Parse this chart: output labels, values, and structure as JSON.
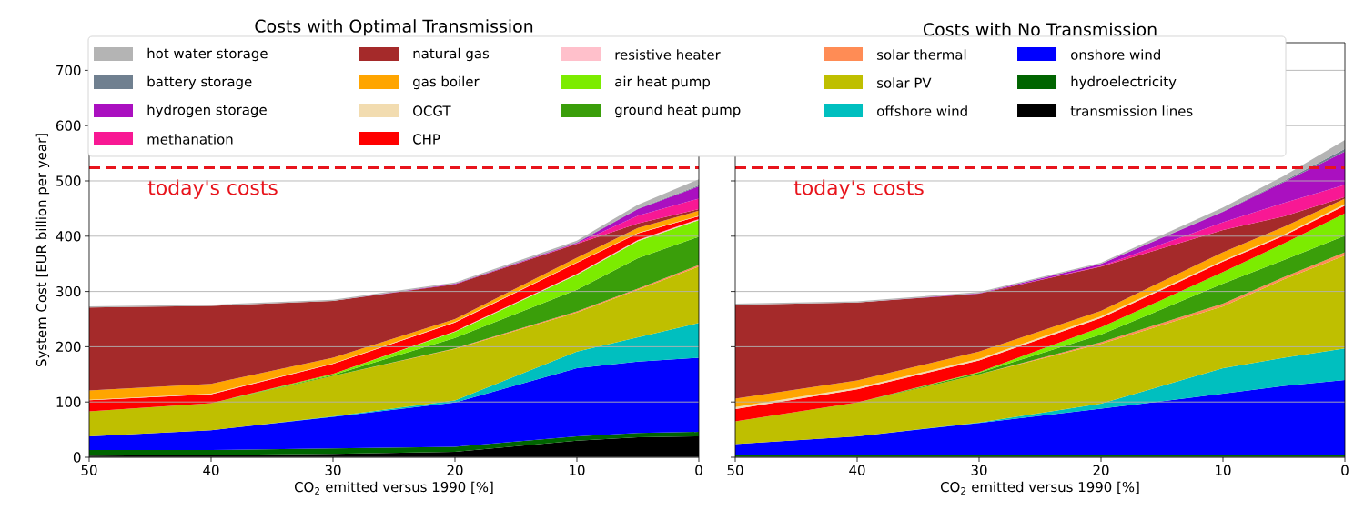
{
  "chart_data": [
    {
      "type": "area",
      "stacked": true,
      "title": "Costs with Optimal Transmission",
      "xlabel": "CO$_{2}$ emitted versus 1990 [%]",
      "ylabel": "System Cost [EUR billion per year]",
      "x": [
        50,
        40,
        30,
        20,
        10,
        5,
        0
      ],
      "xlim": [
        50,
        0
      ],
      "xticks": [
        50,
        40,
        30,
        20,
        10,
        0
      ],
      "ylim": [
        0,
        750
      ],
      "yticks": [
        0,
        100,
        200,
        300,
        400,
        500,
        600,
        700
      ],
      "grid": "y",
      "legend": "top",
      "ref_lines": [
        {
          "axis": "y",
          "value": 524,
          "label": "today's costs",
          "color": "#e8141c",
          "line_style": "dashed"
        }
      ],
      "series": [
        {
          "name": "transmission lines",
          "color": "#000000",
          "values": [
            3,
            4,
            6,
            10,
            30,
            36,
            38
          ]
        },
        {
          "name": "hydroelectricity",
          "color": "#006400",
          "values": [
            10,
            9,
            10,
            9,
            8,
            8,
            8
          ]
        },
        {
          "name": "onshore wind",
          "color": "#0000ff",
          "values": [
            25,
            36,
            57,
            80,
            123,
            129,
            134
          ]
        },
        {
          "name": "offshore wind",
          "color": "#00bfbf",
          "values": [
            null,
            0,
            1,
            4,
            30,
            44,
            63
          ]
        },
        {
          "name": "solar PV",
          "color": "#bfbf00",
          "values": [
            45,
            49,
            73,
            93,
            71,
            86,
            102
          ]
        },
        {
          "name": "solar thermal",
          "color": "#ff8c55",
          "values": [
            null,
            null,
            0,
            1,
            2,
            2,
            3
          ]
        },
        {
          "name": "ground heat pump",
          "color": "#3a9e0a",
          "values": [
            null,
            0,
            2,
            19,
            39,
            55,
            51
          ]
        },
        {
          "name": "air heat pump",
          "color": "#7cec00",
          "values": [
            null,
            0,
            2,
            11,
            27,
            31,
            30
          ]
        },
        {
          "name": "resistive heater",
          "color": "#ffc0cb",
          "values": [
            null,
            null,
            0,
            1,
            2,
            2,
            2
          ]
        },
        {
          "name": "CHP",
          "color": "#ff0000",
          "values": [
            20,
            16,
            18,
            16,
            20,
            12,
            5
          ]
        },
        {
          "name": "OCGT",
          "color": "#f2dcb0",
          "values": [
            1,
            1,
            1,
            1,
            1,
            1,
            1
          ]
        },
        {
          "name": "gas boiler",
          "color": "#ffa500",
          "values": [
            17,
            18,
            10,
            5,
            8,
            9,
            9
          ]
        },
        {
          "name": "natural gas",
          "color": "#a52a2a",
          "values": [
            150,
            141,
            103,
            63,
            25,
            8,
            3
          ]
        },
        {
          "name": "methanation",
          "color": "#f81894",
          "values": [
            null,
            null,
            null,
            0,
            1,
            14,
            19
          ]
        },
        {
          "name": "hydrogen storage",
          "color": "#aa10c0",
          "values": [
            null,
            null,
            0,
            1,
            1,
            12,
            22
          ]
        },
        {
          "name": "battery storage",
          "color": "#708090",
          "values": [
            null,
            null,
            null,
            0,
            1,
            1,
            2
          ]
        },
        {
          "name": "hot water storage",
          "color": "#b4b4b4",
          "values": [
            2,
            2,
            2,
            2,
            3,
            7,
            11
          ]
        }
      ]
    },
    {
      "type": "area",
      "stacked": true,
      "title": "Costs with No Transmission",
      "xlabel": "CO$_{2}$ emitted versus 1990 [%]",
      "x": [
        50,
        40,
        30,
        20,
        10,
        5,
        0
      ],
      "xlim": [
        50,
        0
      ],
      "xticks": [
        50,
        40,
        30,
        20,
        10,
        0
      ],
      "ylim": [
        0,
        750
      ],
      "yticks": [
        0,
        100,
        200,
        300,
        400,
        500,
        600,
        700
      ],
      "grid": "y",
      "tick_labels": "x",
      "ref_lines": [
        {
          "axis": "y",
          "value": 524,
          "label": "today's costs",
          "color": "#e8141c",
          "line_style": "dashed"
        }
      ],
      "series": [
        {
          "color": "#006400",
          "values": [
            5,
            5,
            5,
            5,
            5,
            5,
            5
          ]
        },
        {
          "color": "#0000ff",
          "values": [
            19,
            33,
            57,
            83,
            110,
            124,
            135
          ]
        },
        {
          "color": "#00bfbf",
          "values": [
            null,
            0,
            1,
            9,
            46,
            51,
            57
          ]
        },
        {
          "color": "#bfbf00",
          "values": [
            41,
            61,
            87,
            108,
            112,
            142,
            168
          ]
        },
        {
          "color": "#ff8c55",
          "values": [
            null,
            null,
            0,
            3,
            5,
            4,
            6
          ]
        },
        {
          "color": "#3a9e0a",
          "values": [
            null,
            0,
            3,
            14,
            36,
            31,
            30
          ]
        },
        {
          "color": "#7cec00",
          "values": [
            null,
            0,
            1,
            13,
            21,
            30,
            40
          ]
        },
        {
          "color": "#ff0000",
          "values": [
            22,
            24,
            21,
            17,
            19,
            14,
            14
          ]
        },
        {
          "color": "#f2dcb0",
          "values": [
            4,
            3,
            3,
            3,
            2,
            2,
            3
          ]
        },
        {
          "color": "#ffa500",
          "values": [
            15,
            13,
            13,
            10,
            15,
            14,
            10
          ]
        },
        {
          "color": "#a52a2a",
          "values": [
            170,
            141,
            105,
            80,
            40,
            19,
            3
          ]
        },
        {
          "color": "#f81894",
          "values": [
            null,
            null,
            0,
            1,
            14,
            24,
            22
          ]
        },
        {
          "color": "#aa10c0",
          "values": [
            null,
            0,
            1,
            4,
            19,
            38,
            60
          ]
        },
        {
          "color": "#708090",
          "values": [
            null,
            null,
            null,
            0,
            1,
            2,
            5
          ]
        },
        {
          "color": "#b4b4b4",
          "values": [
            2,
            2,
            2,
            2,
            7,
            9,
            16
          ]
        }
      ]
    }
  ]
}
